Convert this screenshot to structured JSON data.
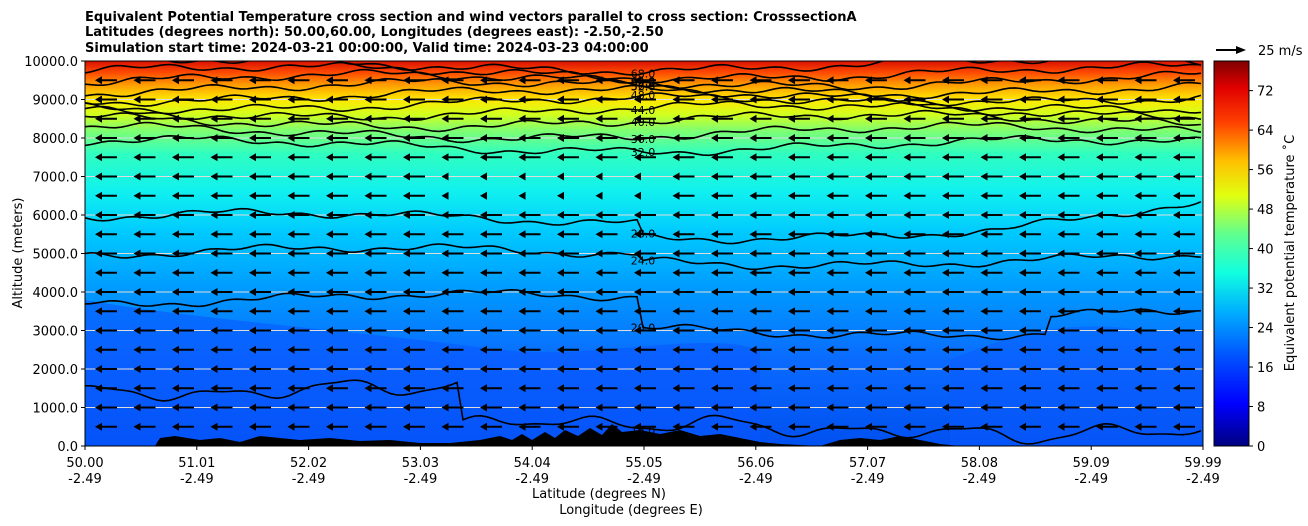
{
  "chart_data": {
    "type": "contourf",
    "title_lines": [
      "Equivalent Potential Temperature cross section and wind vectors parallel to cross section: CrosssectionA",
      "Latitudes (degrees north): 50.00,60.00, Longitudes (degrees east): -2.50,-2.50",
      "Simulation start time: 2024-03-21 00:00:00, Valid time: 2024-03-23 04:00:00"
    ],
    "ylabel": "Altitude (meters)",
    "xlabel_lat": "Latitude (degrees N)",
    "xlabel_lon": "Longitude (degrees E)",
    "ylim": [
      0,
      10000
    ],
    "y_ticks": [
      "0.0",
      "1000.0",
      "2000.0",
      "3000.0",
      "4000.0",
      "5000.0",
      "6000.0",
      "7000.0",
      "8000.0",
      "9000.0",
      "10000.0"
    ],
    "x_ticks_lat": [
      "50.00",
      "51.01",
      "52.02",
      "53.03",
      "54.04",
      "55.05",
      "56.06",
      "57.07",
      "58.08",
      "59.09",
      "59.99"
    ],
    "x_ticks_lon": [
      "-2.49",
      "-2.49",
      "-2.49",
      "-2.49",
      "-2.49",
      "-2.49",
      "-2.49",
      "-2.49",
      "-2.49",
      "-2.49",
      "-2.49"
    ],
    "colorbar": {
      "label": "Equivalent potential temperature ˚C",
      "min": 0,
      "max": 78,
      "ticks": [
        "0",
        "8",
        "16",
        "24",
        "32",
        "40",
        "48",
        "56",
        "64",
        "72"
      ]
    },
    "quiver_key": "25 m/s",
    "contour_levels": [
      {
        "label": "16.0",
        "value": 16
      },
      {
        "label": "20.0",
        "value": 20
      },
      {
        "label": "24.0",
        "value": 24
      },
      {
        "label": "28.0",
        "value": 28
      },
      {
        "label": "32.0",
        "value": 32
      },
      {
        "label": "36.0",
        "value": 36
      },
      {
        "label": "40.0",
        "value": 40
      },
      {
        "label": "44.0",
        "value": 44
      },
      {
        "label": "48.0",
        "value": 48
      },
      {
        "label": "52.0",
        "value": 52
      },
      {
        "label": "56.0",
        "value": 56
      },
      {
        "label": "60.0",
        "value": 60
      },
      {
        "label": "64.0",
        "value": 64
      },
      {
        "label": "68.0",
        "value": 68
      }
    ],
    "colors": {
      "stops": [
        "#00007f",
        "#0000ff",
        "#007fff",
        "#00ffff",
        "#7fff7f",
        "#ffff00",
        "#ff7f00",
        "#ff0000",
        "#7f0000"
      ]
    }
  }
}
